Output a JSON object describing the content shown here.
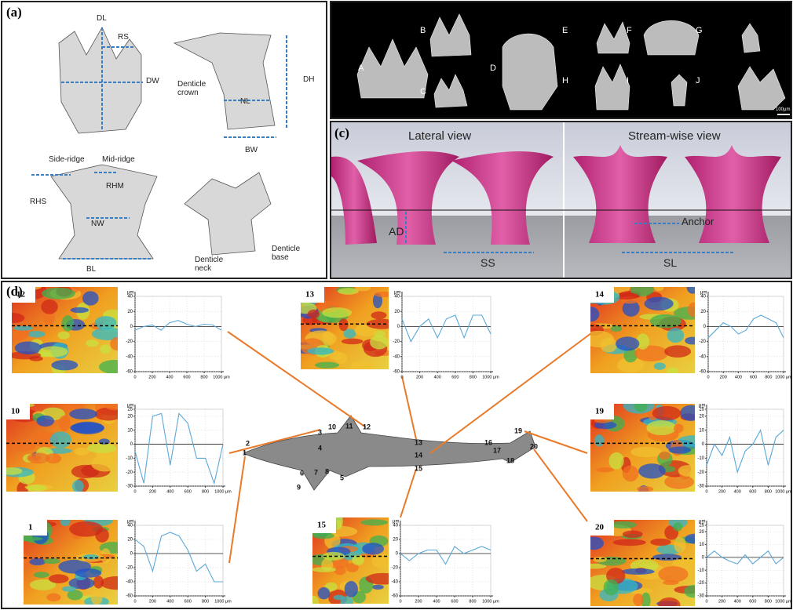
{
  "panel_a": {
    "label": "(a)",
    "annotations": [
      "DL",
      "RS",
      "DW",
      "Denticle crown",
      "DH",
      "NL",
      "BW",
      "Side-ridge",
      "Mid-ridge",
      "RHM",
      "RHS",
      "NW",
      "BL",
      "Denticle neck",
      "Denticle base"
    ]
  },
  "panel_b": {
    "label": "(b)",
    "letters": [
      "A",
      "B",
      "C",
      "D",
      "E",
      "F",
      "G",
      "H",
      "I",
      "J"
    ],
    "scale": "100μm"
  },
  "panel_c": {
    "label": "(c)",
    "annotations": [
      "Lateral view",
      "Stream-wise view",
      "AD",
      "SS",
      "SL",
      "Anchor"
    ]
  },
  "panel_d": {
    "label": "(d)",
    "shark_sites": [
      "1",
      "2",
      "3",
      "4",
      "5",
      "6",
      "7",
      "8",
      "9",
      "10",
      "11",
      "12",
      "13",
      "14",
      "15",
      "16",
      "17",
      "18",
      "19",
      "20"
    ],
    "profiles": [
      {
        "site": "12",
        "y_unit": "μm",
        "ylim": [
          -60,
          40
        ],
        "yticks": [
          40,
          20,
          0,
          -20,
          -40,
          -60
        ],
        "xlim": [
          0,
          1000
        ],
        "xticks": [
          0,
          200,
          400,
          600,
          800,
          {
            "value": 1000,
            "label": "1000 μm"
          }
        ],
        "x": [
          0,
          100,
          200,
          300,
          400,
          500,
          600,
          700,
          800,
          900,
          1000
        ],
        "values": [
          -5,
          0,
          2,
          -5,
          5,
          8,
          3,
          0,
          3,
          2,
          -5
        ]
      },
      {
        "site": "13",
        "y_unit": "μm",
        "ylim": [
          -60,
          40
        ],
        "yticks": [
          40,
          20,
          0,
          -20,
          -40,
          -60
        ],
        "xlim": [
          0,
          1000
        ],
        "xticks": [
          0,
          200,
          400,
          600,
          800,
          {
            "value": 1000,
            "label": "1000 μm"
          }
        ],
        "x": [
          0,
          100,
          200,
          300,
          400,
          500,
          600,
          700,
          800,
          900,
          1000
        ],
        "values": [
          10,
          -20,
          0,
          10,
          -15,
          10,
          15,
          -15,
          15,
          15,
          -10
        ]
      },
      {
        "site": "14",
        "y_unit": "μm",
        "ylim": [
          -60,
          40
        ],
        "yticks": [
          40,
          20,
          0,
          -20,
          -40,
          -60
        ],
        "xlim": [
          0,
          1000
        ],
        "xticks": [
          0,
          200,
          400,
          600,
          800,
          {
            "value": 1000,
            "label": "1000 μm"
          }
        ],
        "x": [
          0,
          100,
          200,
          300,
          400,
          500,
          600,
          700,
          800,
          900,
          1000
        ],
        "values": [
          -15,
          -5,
          5,
          0,
          -10,
          -5,
          10,
          15,
          10,
          5,
          -15
        ]
      },
      {
        "site": "10",
        "y_unit": "μm",
        "ylim": [
          -30,
          25
        ],
        "yticks": [
          25,
          20,
          10,
          0,
          -10,
          -20,
          -30
        ],
        "xlim": [
          0,
          1000
        ],
        "xticks": [
          0,
          200,
          400,
          600,
          800,
          {
            "value": 1000,
            "label": "1000 μm"
          }
        ],
        "x": [
          0,
          100,
          200,
          300,
          400,
          500,
          600,
          700,
          800,
          900,
          1000
        ],
        "values": [
          -5,
          -28,
          20,
          22,
          -15,
          22,
          15,
          -10,
          -10,
          -28,
          0
        ]
      },
      {
        "site": "19",
        "y_unit": "μm",
        "ylim": [
          -30,
          25
        ],
        "yticks": [
          25,
          20,
          10,
          0,
          -10,
          -20,
          -30
        ],
        "xlim": [
          0,
          1000
        ],
        "xticks": [
          0,
          200,
          400,
          600,
          800,
          {
            "value": 1000,
            "label": "1000 μm"
          }
        ],
        "x": [
          0,
          100,
          200,
          300,
          400,
          500,
          600,
          700,
          800,
          900,
          1000
        ],
        "values": [
          -15,
          0,
          -8,
          5,
          -20,
          -5,
          0,
          10,
          -15,
          5,
          10
        ]
      },
      {
        "site": "1",
        "y_unit": "μm",
        "ylim": [
          -60,
          40
        ],
        "yticks": [
          40,
          20,
          0,
          -20,
          -40,
          -60
        ],
        "xlim": [
          0,
          1000
        ],
        "xticks": [
          0,
          200,
          400,
          600,
          800,
          {
            "value": 1000,
            "label": "1000 μm"
          }
        ],
        "x": [
          0,
          100,
          200,
          300,
          400,
          500,
          600,
          700,
          800,
          900,
          1000
        ],
        "values": [
          20,
          10,
          -25,
          25,
          30,
          25,
          5,
          -25,
          -15,
          -40,
          -40
        ]
      },
      {
        "site": "15",
        "y_unit": "μm",
        "ylim": [
          -60,
          40
        ],
        "yticks": [
          40,
          20,
          0,
          -20,
          -40,
          -60
        ],
        "xlim": [
          0,
          1000
        ],
        "xticks": [
          0,
          200,
          400,
          600,
          800,
          {
            "value": 1000,
            "label": "1000 μm"
          }
        ],
        "x": [
          0,
          100,
          200,
          300,
          400,
          500,
          600,
          700,
          800,
          900,
          1000
        ],
        "values": [
          0,
          -10,
          0,
          5,
          5,
          -15,
          10,
          0,
          5,
          10,
          5
        ]
      },
      {
        "site": "20",
        "y_unit": "μm",
        "ylim": [
          -30,
          25
        ],
        "yticks": [
          25,
          20,
          10,
          0,
          -10,
          -20,
          -30
        ],
        "xlim": [
          0,
          1000
        ],
        "xticks": [
          0,
          200,
          400,
          600,
          800,
          {
            "value": 1000,
            "label": "1000 μm"
          }
        ],
        "x": [
          0,
          100,
          200,
          300,
          400,
          500,
          600,
          700,
          800,
          900,
          1000
        ],
        "values": [
          0,
          5,
          0,
          -3,
          -5,
          2,
          -5,
          0,
          5,
          -5,
          0
        ]
      }
    ]
  }
}
